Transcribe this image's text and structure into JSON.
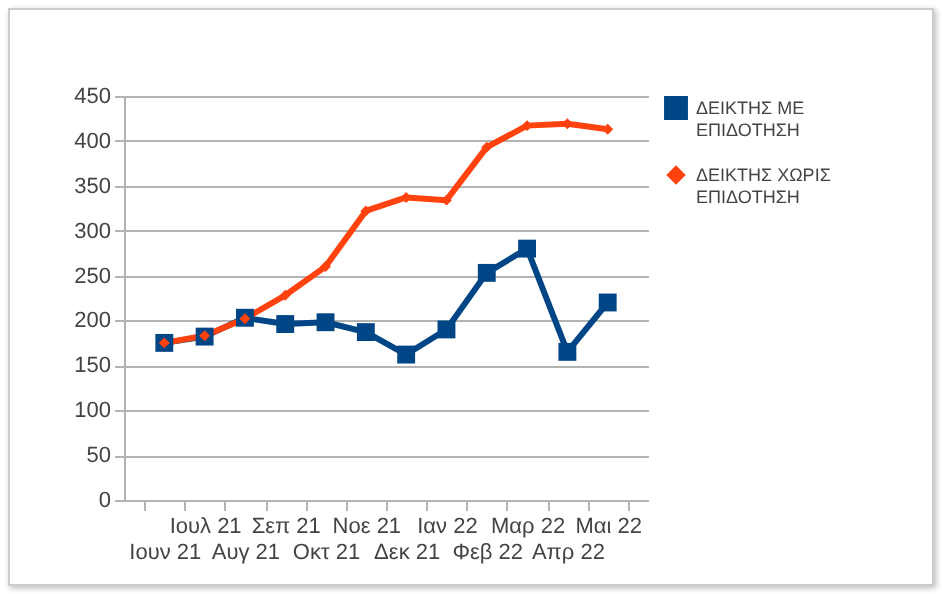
{
  "chart_data": {
    "type": "line",
    "categories": [
      "Ιουν 21",
      "Ιουλ 21",
      "Αυγ 21",
      "Σεπ 21",
      "Οκτ 21",
      "Νοε 21",
      "Δεκ 21",
      "Ιαν 22",
      "Φεβ 22",
      "Μαρ 22",
      "Απρ 22",
      "Μαι 22"
    ],
    "series": [
      {
        "name": "ΔΕΙΚΤΗΣ ΜΕ ΕΠΙΔΟΤΗΣΗ",
        "color": "#004586",
        "marker": "square",
        "values": [
          175,
          182,
          203,
          196,
          198,
          187,
          162,
          190,
          253,
          280,
          165,
          220
        ]
      },
      {
        "name": "ΔΕΙΚΤΗΣ ΧΩΡΙΣ ΕΠΙΔΟΤΗΣΗ",
        "color": "#ff420e",
        "marker": "diamond",
        "values": [
          175,
          183,
          202,
          228,
          260,
          322,
          337,
          334,
          393,
          417,
          419,
          413
        ]
      }
    ],
    "ylim": [
      0,
      450
    ],
    "yticks": [
      0,
      50,
      100,
      150,
      200,
      250,
      300,
      350,
      400,
      450
    ],
    "grid": "y",
    "legend": "right"
  }
}
